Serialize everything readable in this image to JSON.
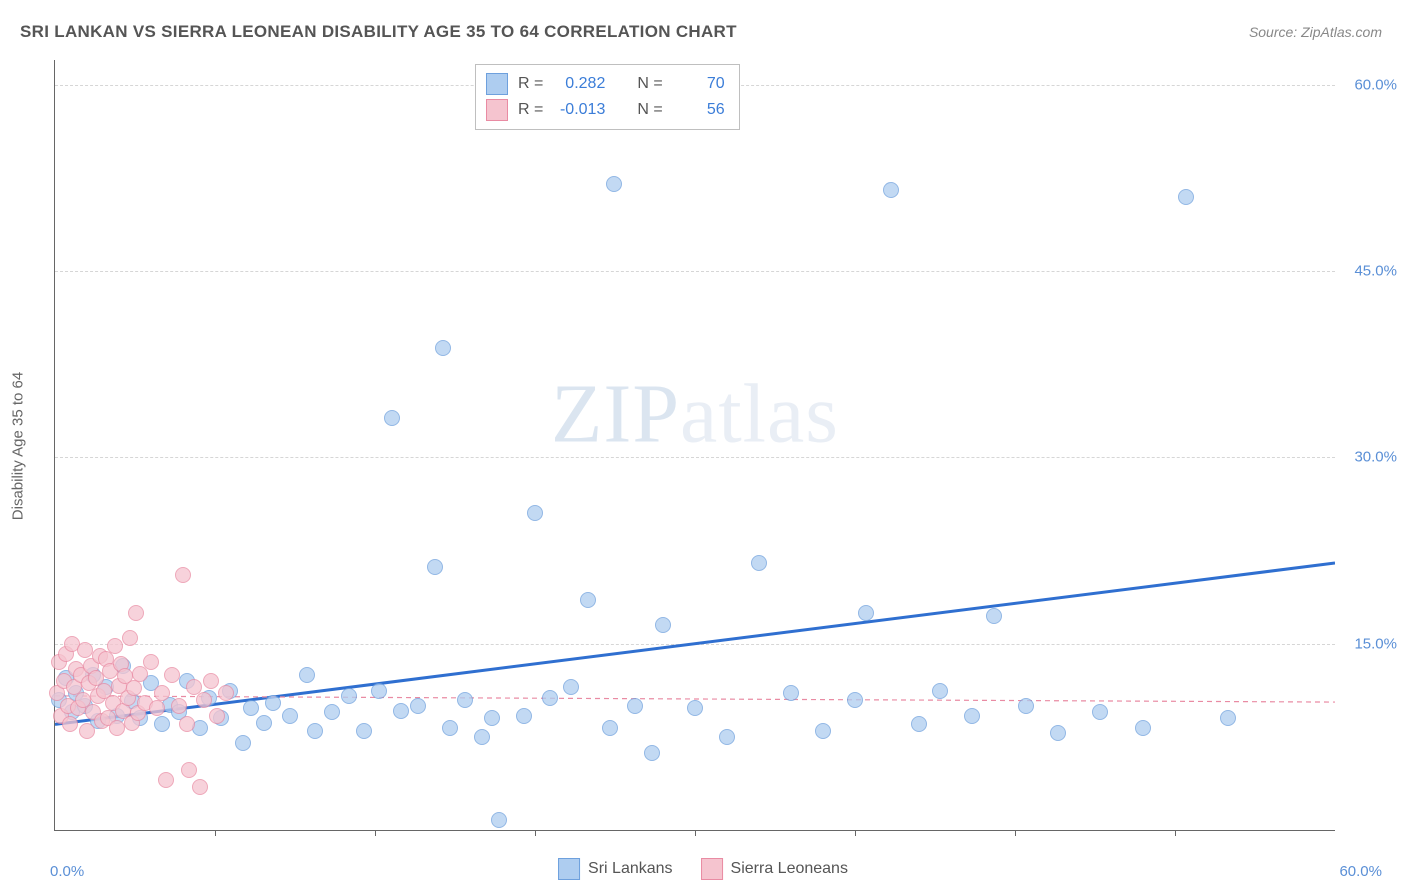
{
  "title": "SRI LANKAN VS SIERRA LEONEAN DISABILITY AGE 35 TO 64 CORRELATION CHART",
  "source_label": "Source: ZipAtlas.com",
  "y_axis_label": "Disability Age 35 to 64",
  "watermark_a": "ZIP",
  "watermark_b": "atlas",
  "chart": {
    "type": "scatter",
    "xlim": [
      0,
      60
    ],
    "ylim": [
      0,
      62
    ],
    "x_ticks_major": [
      0,
      60
    ],
    "x_ticks_minor": [
      7.5,
      15,
      22.5,
      30,
      37.5,
      45,
      52.5
    ],
    "y_ticks": [
      15,
      30,
      45,
      60
    ],
    "x_tick_labels": {
      "0": "0.0%",
      "60": "60.0%"
    },
    "y_tick_labels": {
      "15": "15.0%",
      "30": "30.0%",
      "45": "45.0%",
      "60": "60.0%"
    },
    "grid_color": "#d6d6d6",
    "background_color": "#ffffff",
    "marker_radius": 7,
    "marker_stroke_width": 1,
    "series": [
      {
        "name": "Sri Lankans",
        "fill": "#aecdf0",
        "stroke": "#6ea0dd",
        "opacity": 0.75,
        "r_value": "0.282",
        "n_value": "70",
        "trend": {
          "x1": 0,
          "y1": 8.5,
          "x2": 60,
          "y2": 21.5,
          "color": "#2f6fd0",
          "width": 3,
          "dash": "none"
        },
        "points": [
          [
            0.2,
            10.5
          ],
          [
            0.5,
            12.2
          ],
          [
            0.8,
            9.5
          ],
          [
            1.0,
            11.0
          ],
          [
            1.4,
            10.0
          ],
          [
            1.8,
            12.5
          ],
          [
            2.0,
            8.8
          ],
          [
            2.4,
            11.5
          ],
          [
            2.9,
            9.2
          ],
          [
            3.2,
            13.2
          ],
          [
            3.6,
            10.4
          ],
          [
            4.0,
            9.0
          ],
          [
            4.5,
            11.8
          ],
          [
            5.0,
            8.5
          ],
          [
            5.4,
            10.1
          ],
          [
            5.8,
            9.5
          ],
          [
            6.2,
            12.0
          ],
          [
            6.8,
            8.2
          ],
          [
            7.2,
            10.6
          ],
          [
            7.8,
            9.0
          ],
          [
            8.2,
            11.2
          ],
          [
            8.8,
            7.0
          ],
          [
            9.2,
            9.8
          ],
          [
            9.8,
            8.6
          ],
          [
            10.2,
            10.2
          ],
          [
            11.0,
            9.2
          ],
          [
            11.8,
            12.5
          ],
          [
            12.2,
            8.0
          ],
          [
            13.0,
            9.5
          ],
          [
            13.8,
            10.8
          ],
          [
            14.5,
            8.0
          ],
          [
            15.2,
            11.2
          ],
          [
            15.8,
            33.2
          ],
          [
            16.2,
            9.6
          ],
          [
            17.0,
            10.0
          ],
          [
            17.8,
            21.2
          ],
          [
            18.2,
            38.8
          ],
          [
            18.5,
            8.2
          ],
          [
            19.2,
            10.5
          ],
          [
            20.0,
            7.5
          ],
          [
            20.5,
            9.0
          ],
          [
            20.8,
            0.8
          ],
          [
            22.0,
            9.2
          ],
          [
            22.5,
            25.5
          ],
          [
            23.2,
            10.6
          ],
          [
            24.2,
            11.5
          ],
          [
            25.0,
            18.5
          ],
          [
            26.0,
            8.2
          ],
          [
            26.2,
            52.0
          ],
          [
            27.2,
            10.0
          ],
          [
            28.0,
            6.2
          ],
          [
            28.5,
            16.5
          ],
          [
            30.0,
            9.8
          ],
          [
            31.5,
            7.5
          ],
          [
            33.0,
            21.5
          ],
          [
            34.5,
            11.0
          ],
          [
            36.0,
            8.0
          ],
          [
            37.5,
            10.5
          ],
          [
            38.0,
            17.5
          ],
          [
            39.2,
            51.5
          ],
          [
            40.5,
            8.5
          ],
          [
            41.5,
            11.2
          ],
          [
            43.0,
            9.2
          ],
          [
            44.0,
            17.2
          ],
          [
            45.5,
            10.0
          ],
          [
            47.0,
            7.8
          ],
          [
            49.0,
            9.5
          ],
          [
            51.0,
            8.2
          ],
          [
            53.0,
            51.0
          ],
          [
            55.0,
            9.0
          ]
        ]
      },
      {
        "name": "Sierra Leoneans",
        "fill": "#f5c4cf",
        "stroke": "#e98ba3",
        "opacity": 0.75,
        "r_value": "-0.013",
        "n_value": "56",
        "trend": {
          "x1": 0,
          "y1": 10.8,
          "x2": 60,
          "y2": 10.3,
          "color": "#e98ba3",
          "width": 1.2,
          "dash": "5,4"
        },
        "points": [
          [
            0.1,
            11.0
          ],
          [
            0.2,
            13.5
          ],
          [
            0.3,
            9.2
          ],
          [
            0.4,
            12.0
          ],
          [
            0.5,
            14.2
          ],
          [
            0.6,
            10.0
          ],
          [
            0.7,
            8.5
          ],
          [
            0.8,
            15.0
          ],
          [
            0.9,
            11.5
          ],
          [
            1.0,
            13.0
          ],
          [
            1.1,
            9.8
          ],
          [
            1.2,
            12.5
          ],
          [
            1.3,
            10.5
          ],
          [
            1.4,
            14.5
          ],
          [
            1.5,
            8.0
          ],
          [
            1.6,
            11.8
          ],
          [
            1.7,
            13.2
          ],
          [
            1.8,
            9.5
          ],
          [
            1.9,
            12.2
          ],
          [
            2.0,
            10.8
          ],
          [
            2.1,
            14.0
          ],
          [
            2.2,
            8.8
          ],
          [
            2.3,
            11.2
          ],
          [
            2.4,
            13.8
          ],
          [
            2.5,
            9.0
          ],
          [
            2.6,
            12.8
          ],
          [
            2.7,
            10.2
          ],
          [
            2.8,
            14.8
          ],
          [
            2.9,
            8.2
          ],
          [
            3.0,
            11.6
          ],
          [
            3.1,
            13.4
          ],
          [
            3.2,
            9.6
          ],
          [
            3.3,
            12.4
          ],
          [
            3.4,
            10.6
          ],
          [
            3.5,
            15.5
          ],
          [
            3.6,
            8.6
          ],
          [
            3.7,
            11.4
          ],
          [
            3.8,
            17.5
          ],
          [
            3.9,
            9.4
          ],
          [
            4.0,
            12.6
          ],
          [
            4.2,
            10.2
          ],
          [
            4.5,
            13.5
          ],
          [
            4.8,
            9.8
          ],
          [
            5.0,
            11.0
          ],
          [
            5.2,
            4.0
          ],
          [
            5.5,
            12.5
          ],
          [
            5.8,
            10.0
          ],
          [
            6.0,
            20.5
          ],
          [
            6.2,
            8.5
          ],
          [
            6.5,
            11.5
          ],
          [
            6.8,
            3.5
          ],
          [
            6.3,
            4.8
          ],
          [
            7.0,
            10.5
          ],
          [
            7.3,
            12.0
          ],
          [
            7.6,
            9.2
          ],
          [
            8.0,
            11.0
          ]
        ]
      }
    ]
  },
  "stats_box": {
    "r_label": "R =",
    "n_label": "N ="
  },
  "legend": {
    "series1_label": "Sri Lankans",
    "series2_label": "Sierra Leoneans"
  }
}
